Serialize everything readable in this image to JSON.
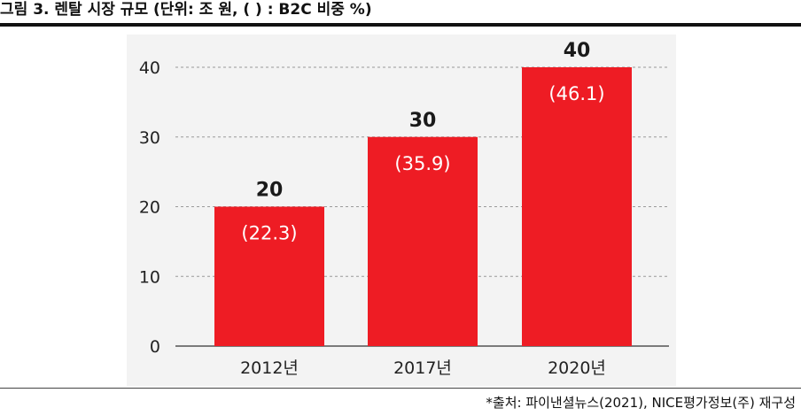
{
  "header": {
    "title": "그림 3. 렌탈 시장 규모 (단위: 조 원, ( ) : B2C 비중 %)"
  },
  "footer": {
    "source": "*출처: 파이낸셜뉴스(2021), NICE평가정보(주) 재구성"
  },
  "chart_data": {
    "type": "bar",
    "categories": [
      "2012년",
      "2017년",
      "2020년"
    ],
    "values": [
      20,
      30,
      40
    ],
    "value_labels": [
      "20",
      "30",
      "40"
    ],
    "inner_labels": [
      "(22.3)",
      "(35.9)",
      "(46.1)"
    ],
    "title": "",
    "xlabel": "",
    "ylabel": "",
    "ylim": [
      0,
      40
    ],
    "yticks": [
      0,
      10,
      20,
      30,
      40
    ],
    "grid": true,
    "colors": {
      "bar": "#ee1c24",
      "panel": "#f3f3f3",
      "grid": "#9a9a9a",
      "text": "#222222",
      "inner_text": "#ffffff"
    }
  }
}
